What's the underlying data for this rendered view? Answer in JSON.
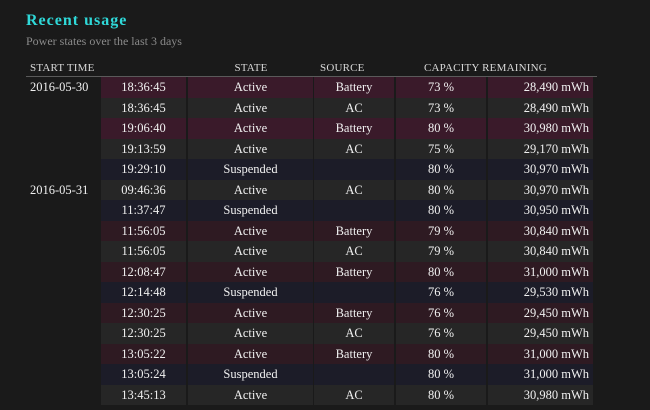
{
  "header": {
    "title": "Recent usage",
    "subtitle": "Power states over the last 3 days"
  },
  "table": {
    "columns": {
      "start_time": "START TIME",
      "state": "STATE",
      "source": "SOURCE",
      "capacity": "CAPACITY REMAINING"
    },
    "rows": [
      {
        "date": "2016-05-30",
        "time": "18:36:45",
        "state": "Active",
        "source": "Battery",
        "pct": "73 %",
        "cap": "28,490 mWh",
        "shade": "a"
      },
      {
        "date": "",
        "time": "18:36:45",
        "state": "Active",
        "source": "AC",
        "pct": "73 %",
        "cap": "28,490 mWh",
        "shade": "b"
      },
      {
        "date": "",
        "time": "19:06:40",
        "state": "Active",
        "source": "Battery",
        "pct": "80 %",
        "cap": "30,980 mWh",
        "shade": "a"
      },
      {
        "date": "",
        "time": "19:13:59",
        "state": "Active",
        "source": "AC",
        "pct": "75 %",
        "cap": "29,170 mWh",
        "shade": "b"
      },
      {
        "date": "",
        "time": "19:29:10",
        "state": "Suspended",
        "source": "",
        "pct": "80 %",
        "cap": "30,970 mWh",
        "shade": "c"
      },
      {
        "date": "2016-05-31",
        "time": "09:46:36",
        "state": "Active",
        "source": "AC",
        "pct": "80 %",
        "cap": "30,970 mWh",
        "shade": "b"
      },
      {
        "date": "",
        "time": "11:37:47",
        "state": "Suspended",
        "source": "",
        "pct": "80 %",
        "cap": "30,950 mWh",
        "shade": "c"
      },
      {
        "date": "",
        "time": "11:56:05",
        "state": "Active",
        "source": "Battery",
        "pct": "79 %",
        "cap": "30,840 mWh",
        "shade": "d"
      },
      {
        "date": "",
        "time": "11:56:05",
        "state": "Active",
        "source": "AC",
        "pct": "79 %",
        "cap": "30,840 mWh",
        "shade": "b"
      },
      {
        "date": "",
        "time": "12:08:47",
        "state": "Active",
        "source": "Battery",
        "pct": "80 %",
        "cap": "31,000 mWh",
        "shade": "d"
      },
      {
        "date": "",
        "time": "12:14:48",
        "state": "Suspended",
        "source": "",
        "pct": "76 %",
        "cap": "29,530 mWh",
        "shade": "c"
      },
      {
        "date": "",
        "time": "12:30:25",
        "state": "Active",
        "source": "Battery",
        "pct": "76 %",
        "cap": "29,450 mWh",
        "shade": "d"
      },
      {
        "date": "",
        "time": "12:30:25",
        "state": "Active",
        "source": "AC",
        "pct": "76 %",
        "cap": "29,450 mWh",
        "shade": "b"
      },
      {
        "date": "",
        "time": "13:05:22",
        "state": "Active",
        "source": "Battery",
        "pct": "80 %",
        "cap": "31,000 mWh",
        "shade": "d"
      },
      {
        "date": "",
        "time": "13:05:24",
        "state": "Suspended",
        "source": "",
        "pct": "80 %",
        "cap": "31,000 mWh",
        "shade": "c"
      },
      {
        "date": "",
        "time": "13:45:13",
        "state": "Active",
        "source": "AC",
        "pct": "80 %",
        "cap": "30,980 mWh",
        "shade": "b"
      }
    ]
  },
  "colors": {
    "title": "#2fd8d8",
    "battery_row": "#3a1a2a",
    "ac_row": "#262626",
    "suspended_row": "#1c1c28"
  }
}
